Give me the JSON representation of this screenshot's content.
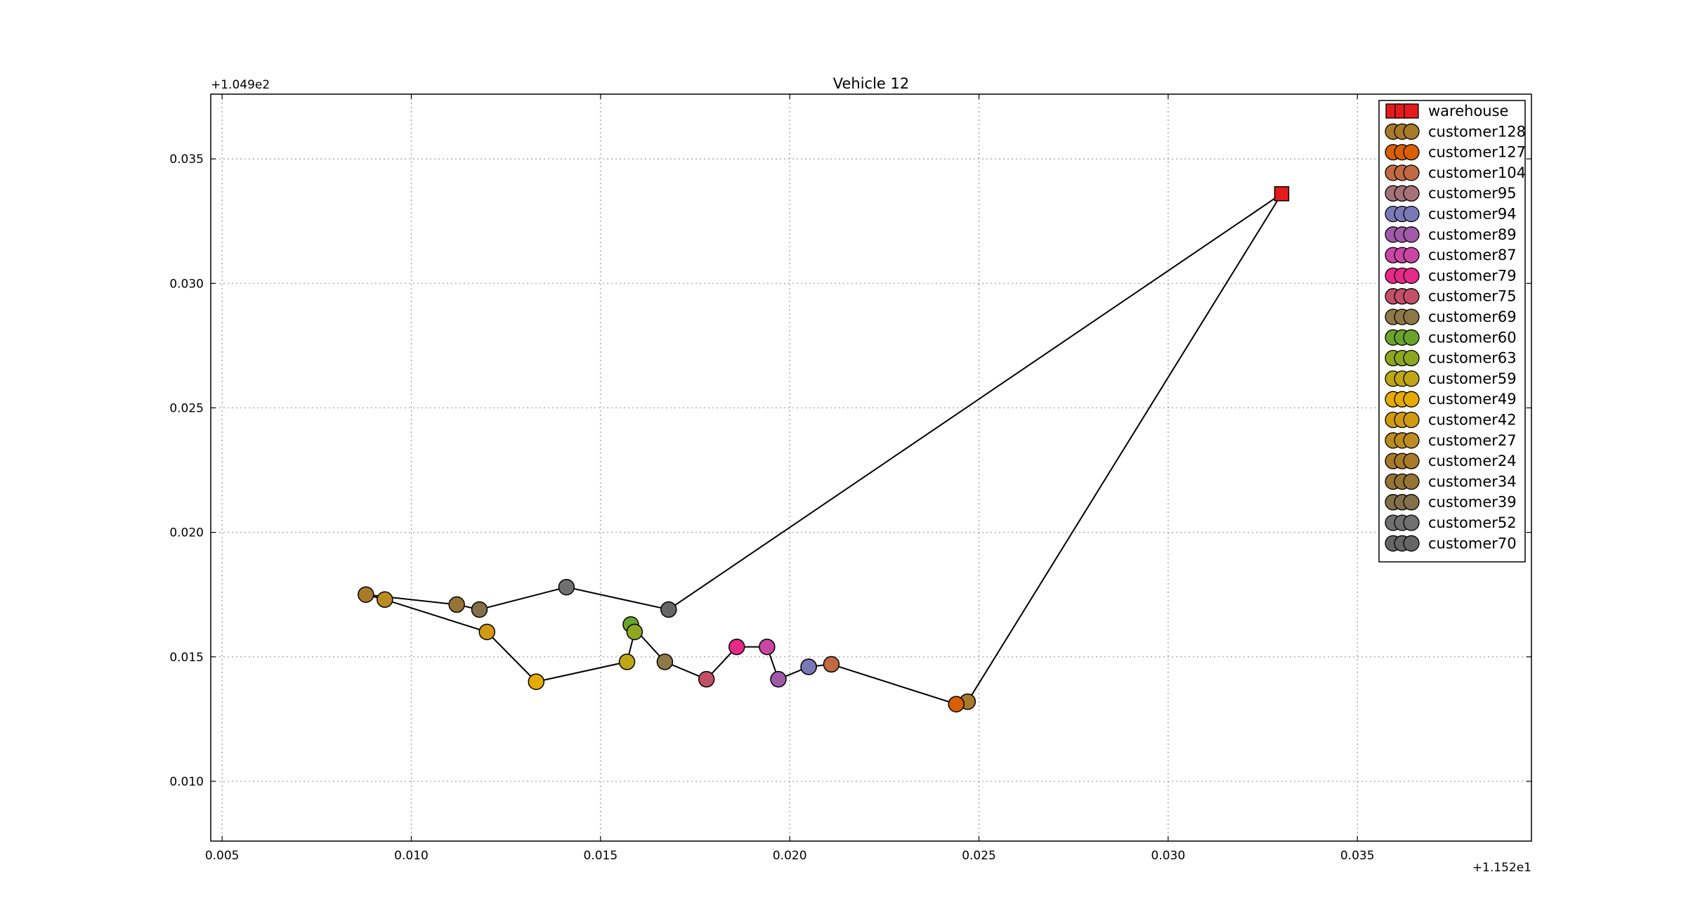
{
  "chart_data": {
    "type": "scatter",
    "title": "Vehicle 12",
    "xlabel": "",
    "ylabel": "",
    "x_offset_label": "+1.152e1",
    "y_offset_label": "+1.049e2",
    "xlim": [
      0.0047,
      0.0396
    ],
    "ylim": [
      0.0076,
      0.0376
    ],
    "x_ticks": [
      0.005,
      0.01,
      0.015,
      0.02,
      0.025,
      0.03,
      0.035
    ],
    "x_tick_labels": [
      "0.005",
      "0.010",
      "0.015",
      "0.020",
      "0.025",
      "0.030",
      "0.035"
    ],
    "y_ticks": [
      0.01,
      0.015,
      0.02,
      0.025,
      0.03,
      0.035
    ],
    "y_tick_labels": [
      "0.010",
      "0.015",
      "0.020",
      "0.025",
      "0.030",
      "0.035"
    ],
    "grid": true,
    "legend_position": "top-right",
    "route_color": "#000000",
    "series": [
      {
        "name": "warehouse",
        "marker": "square",
        "color": "#e41a1c",
        "points": [
          [
            0.033,
            0.0336
          ]
        ]
      },
      {
        "name": "customer128",
        "marker": "circle",
        "color": "#a87a2a",
        "points": [
          [
            0.0247,
            0.0132
          ]
        ]
      },
      {
        "name": "customer127",
        "marker": "circle",
        "color": "#d95f02",
        "points": [
          [
            0.0244,
            0.0131
          ]
        ]
      },
      {
        "name": "customer104",
        "marker": "circle",
        "color": "#c06a43",
        "points": [
          [
            0.0211,
            0.0147
          ]
        ]
      },
      {
        "name": "customer95",
        "marker": "circle",
        "color": "#a6727a",
        "points": [
          [
            0.0205,
            0.0146
          ]
        ]
      },
      {
        "name": "customer94",
        "marker": "circle",
        "color": "#7b78b8",
        "points": [
          [
            0.0205,
            0.0146
          ]
        ]
      },
      {
        "name": "customer89",
        "marker": "circle",
        "color": "#a05aa8",
        "points": [
          [
            0.0197,
            0.0141
          ]
        ]
      },
      {
        "name": "customer87",
        "marker": "circle",
        "color": "#c846a4",
        "points": [
          [
            0.0194,
            0.0154
          ]
        ]
      },
      {
        "name": "customer79",
        "marker": "circle",
        "color": "#e7298a",
        "points": [
          [
            0.0186,
            0.0154
          ]
        ]
      },
      {
        "name": "customer75",
        "marker": "circle",
        "color": "#c25068",
        "points": [
          [
            0.0178,
            0.0141
          ]
        ]
      },
      {
        "name": "customer69",
        "marker": "circle",
        "color": "#8e7848",
        "points": [
          [
            0.0167,
            0.0148
          ]
        ]
      },
      {
        "name": "customer60",
        "marker": "circle",
        "color": "#6ba42c",
        "points": [
          [
            0.0158,
            0.0163
          ]
        ]
      },
      {
        "name": "customer63",
        "marker": "circle",
        "color": "#8fa620",
        "points": [
          [
            0.0159,
            0.016
          ]
        ]
      },
      {
        "name": "customer59",
        "marker": "circle",
        "color": "#bfa616",
        "points": [
          [
            0.0157,
            0.0148
          ]
        ]
      },
      {
        "name": "customer49",
        "marker": "circle",
        "color": "#e6ab02",
        "points": [
          [
            0.0133,
            0.014
          ]
        ]
      },
      {
        "name": "customer42",
        "marker": "circle",
        "color": "#d19a12",
        "points": [
          [
            0.012,
            0.016
          ]
        ]
      },
      {
        "name": "customer27",
        "marker": "circle",
        "color": "#bc8c22",
        "points": [
          [
            0.0093,
            0.0173
          ]
        ]
      },
      {
        "name": "customer24",
        "marker": "circle",
        "color": "#a87a2a",
        "points": [
          [
            0.0088,
            0.0175
          ]
        ]
      },
      {
        "name": "customer34",
        "marker": "circle",
        "color": "#967436",
        "points": [
          [
            0.0112,
            0.0171
          ]
        ]
      },
      {
        "name": "customer39",
        "marker": "circle",
        "color": "#83704a",
        "points": [
          [
            0.0118,
            0.0169
          ]
        ]
      },
      {
        "name": "customer52",
        "marker": "circle",
        "color": "#707070",
        "points": [
          [
            0.0141,
            0.0178
          ]
        ]
      },
      {
        "name": "customer70",
        "marker": "circle",
        "color": "#666666",
        "points": [
          [
            0.0168,
            0.0169
          ]
        ]
      }
    ],
    "route": [
      [
        0.033,
        0.0336
      ],
      [
        0.0247,
        0.0132
      ],
      [
        0.0244,
        0.0131
      ],
      [
        0.0211,
        0.0147
      ],
      [
        0.0205,
        0.0146
      ],
      [
        0.0205,
        0.0146
      ],
      [
        0.0197,
        0.0141
      ],
      [
        0.0194,
        0.0154
      ],
      [
        0.0186,
        0.0154
      ],
      [
        0.0178,
        0.0141
      ],
      [
        0.0167,
        0.0148
      ],
      [
        0.0158,
        0.0163
      ],
      [
        0.0159,
        0.016
      ],
      [
        0.0157,
        0.0148
      ],
      [
        0.0133,
        0.014
      ],
      [
        0.012,
        0.016
      ],
      [
        0.0093,
        0.0173
      ],
      [
        0.0088,
        0.0175
      ],
      [
        0.0112,
        0.0171
      ],
      [
        0.0118,
        0.0169
      ],
      [
        0.0141,
        0.0178
      ],
      [
        0.0168,
        0.0169
      ],
      [
        0.033,
        0.0336
      ]
    ]
  }
}
